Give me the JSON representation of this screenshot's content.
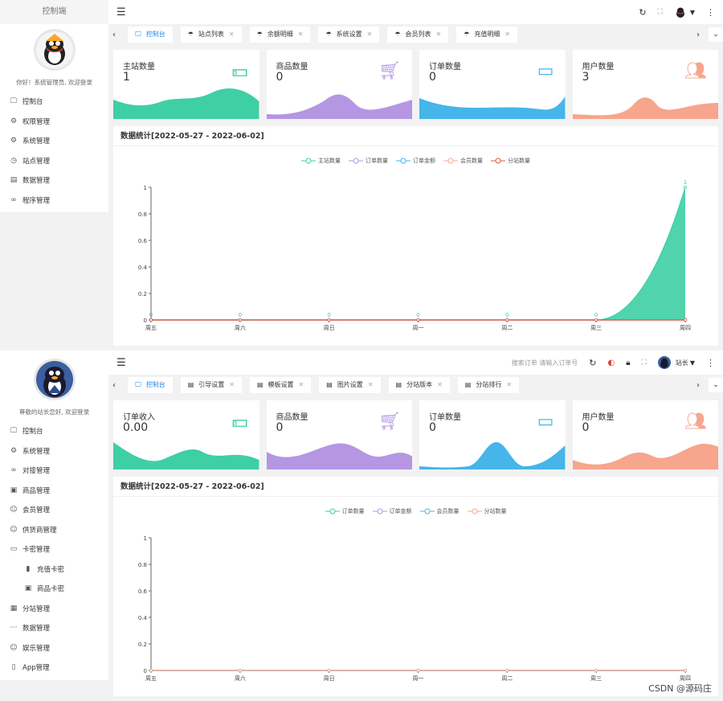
{
  "colors": {
    "green": "#3ecfa5",
    "purple": "#b496e3",
    "blue": "#45b5ea",
    "orange": "#f7a58c",
    "red": "#e05a3a"
  },
  "panel1": {
    "sidebar": {
      "title": "控制端",
      "welcome": "你好！系统管理员, 欢迎登录",
      "items": [
        {
          "label": "控制台",
          "icon": "monitor-icon"
        },
        {
          "label": "权限管理",
          "icon": "gear-icon"
        },
        {
          "label": "系统管理",
          "icon": "gear-icon"
        },
        {
          "label": "站点管理",
          "icon": "clock-icon"
        },
        {
          "label": "数据管理",
          "icon": "database-icon"
        },
        {
          "label": "程序管理",
          "icon": "link-icon"
        }
      ]
    },
    "tabs": [
      {
        "label": "控制台",
        "icon": "monitor-icon",
        "active": true
      },
      {
        "label": "站点列表",
        "icon": "umbrella-icon"
      },
      {
        "label": "余额明细",
        "icon": "umbrella-icon"
      },
      {
        "label": "系统设置",
        "icon": "umbrella-icon"
      },
      {
        "label": "会员列表",
        "icon": "umbrella-icon"
      },
      {
        "label": "充值明细",
        "icon": "umbrella-icon"
      }
    ],
    "cards": [
      {
        "label": "主站数量",
        "value": "1",
        "color": "green",
        "icon": "money-icon"
      },
      {
        "label": "商品数量",
        "value": "0",
        "color": "purple",
        "icon": "cart-icon"
      },
      {
        "label": "订单数量",
        "value": "0",
        "color": "blue",
        "icon": "window-icon"
      },
      {
        "label": "用户数量",
        "value": "3",
        "color": "orange",
        "icon": "users-icon"
      }
    ],
    "chart_title": "数据统计[2022-05-27 - 2022-06-02]"
  },
  "panel2": {
    "sidebar": {
      "welcome": "尊敬的站长您好, 欢迎登录",
      "items": [
        {
          "label": "控制台",
          "icon": "monitor-icon"
        },
        {
          "label": "系统管理",
          "icon": "gear-icon"
        },
        {
          "label": "对接管理",
          "icon": "link-icon"
        },
        {
          "label": "商品管理",
          "icon": "box-icon"
        },
        {
          "label": "会员管理",
          "icon": "user-icon"
        },
        {
          "label": "供货商管理",
          "icon": "user-icon"
        },
        {
          "label": "卡密管理",
          "icon": "card-icon"
        },
        {
          "label": "充值卡密",
          "icon": "bar-icon",
          "sub": true
        },
        {
          "label": "商品卡密",
          "icon": "box-icon",
          "sub": true
        },
        {
          "label": "分站管理",
          "icon": "grid-icon"
        },
        {
          "label": "数据管理",
          "icon": "dots-icon"
        },
        {
          "label": "娱乐管理",
          "icon": "smile-icon"
        },
        {
          "label": "App管理",
          "icon": "phone-icon"
        }
      ]
    },
    "search_placeholder": "搜索订单 请输入订单号",
    "user": "站长",
    "tabs": [
      {
        "label": "控制台",
        "icon": "monitor-icon",
        "active": true
      },
      {
        "label": "引导设置",
        "icon": "doc-icon"
      },
      {
        "label": "模板设置",
        "icon": "doc-icon"
      },
      {
        "label": "图片设置",
        "icon": "doc-icon"
      },
      {
        "label": "分站版本",
        "icon": "doc-icon"
      },
      {
        "label": "分站排行",
        "icon": "doc-icon"
      }
    ],
    "cards": [
      {
        "label": "订单收入",
        "value": "0.00",
        "color": "green",
        "icon": "money-icon"
      },
      {
        "label": "商品数量",
        "value": "0",
        "color": "purple",
        "icon": "cart-icon"
      },
      {
        "label": "订单数量",
        "value": "0",
        "color": "blue",
        "icon": "window-icon"
      },
      {
        "label": "用户数量",
        "value": "0",
        "color": "orange",
        "icon": "users-icon"
      }
    ],
    "chart_title": "数据统计[2022-05-27 - 2022-06-02]"
  },
  "watermark": "CSDN @源码庄",
  "chart_data": [
    {
      "type": "area",
      "x": [
        "周五",
        "周六",
        "周日",
        "周一",
        "周二",
        "周三",
        "周四"
      ],
      "ylim": [
        0,
        1
      ],
      "yticks": [
        "0",
        "0.2",
        "0.4",
        "0.6",
        "0.8",
        "1"
      ],
      "series": [
        {
          "name": "主站数量",
          "color": "green",
          "values": [
            0,
            0,
            0,
            0,
            0,
            0,
            1
          ]
        },
        {
          "name": "订单数量",
          "color": "purple",
          "values": [
            0,
            0,
            0,
            0,
            0,
            0,
            0
          ]
        },
        {
          "name": "订单金额",
          "color": "blue",
          "values": [
            0,
            0,
            0,
            0,
            0,
            0,
            0
          ]
        },
        {
          "name": "会员数量",
          "color": "orange",
          "values": [
            0,
            0,
            0,
            0,
            0,
            0,
            0
          ]
        },
        {
          "name": "分站数量",
          "color": "red",
          "values": [
            0,
            0,
            0,
            0,
            0,
            0,
            0
          ]
        }
      ],
      "data_labels": [
        "0",
        "0",
        "0",
        "0",
        "0",
        "0",
        "1"
      ],
      "legend": "top"
    },
    {
      "type": "line",
      "x": [
        "周五",
        "周六",
        "周日",
        "周一",
        "周二",
        "周三",
        "周四"
      ],
      "ylim": [
        0,
        1
      ],
      "yticks": [
        "0",
        "0.2",
        "0.4",
        "0.6",
        "0.8",
        "1"
      ],
      "series": [
        {
          "name": "订单数量",
          "color": "green",
          "values": [
            0,
            0,
            0,
            0,
            0,
            0,
            0
          ]
        },
        {
          "name": "订单金额",
          "color": "purple",
          "values": [
            0,
            0,
            0,
            0,
            0,
            0,
            0
          ]
        },
        {
          "name": "会员数量",
          "color": "blue",
          "values": [
            0,
            0,
            0,
            0,
            0,
            0,
            0
          ]
        },
        {
          "name": "分站数量",
          "color": "orange",
          "values": [
            0,
            0,
            0,
            0,
            0,
            0,
            0
          ]
        }
      ],
      "legend": "top"
    }
  ]
}
